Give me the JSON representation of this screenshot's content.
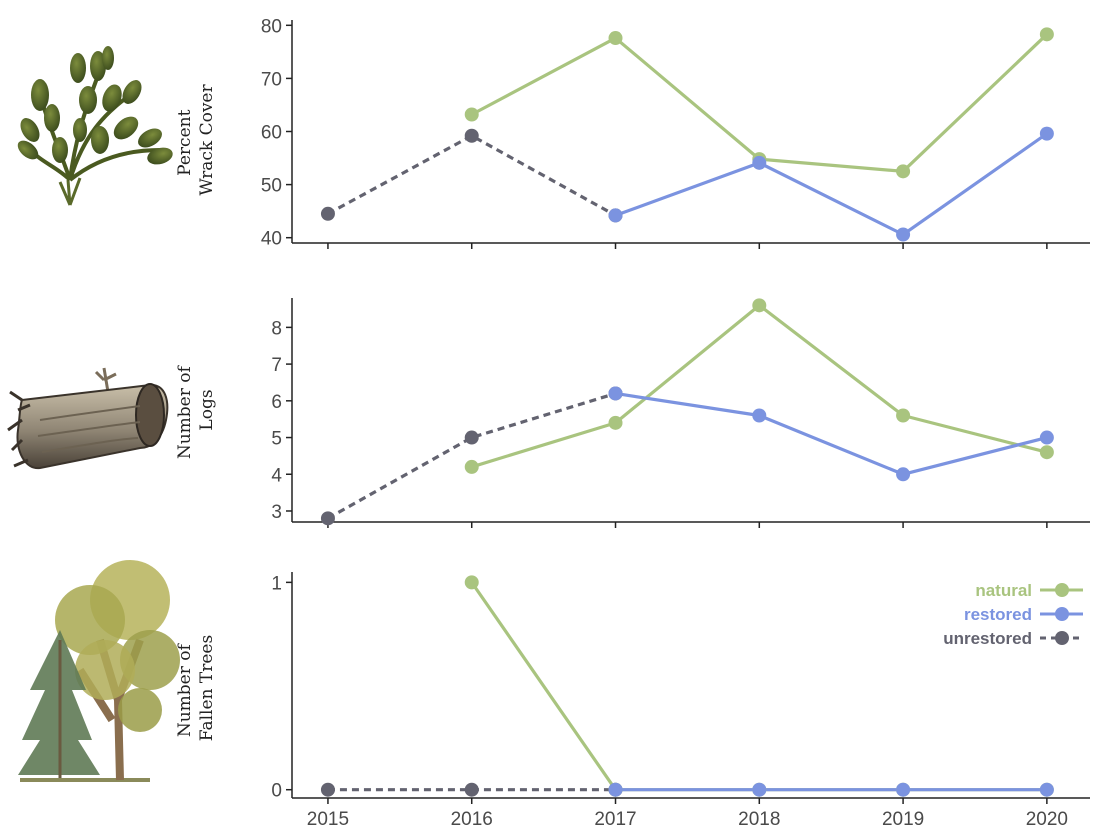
{
  "colors": {
    "natural": "#a9c47f",
    "restored": "#7b93e0",
    "unrestored": "#636370",
    "axis": "#222222"
  },
  "legend": {
    "natural": "natural",
    "restored": "restored",
    "unrestored": "unrestored"
  },
  "icons": [
    "seaweed-illustration",
    "log-illustration",
    "tree-illustration"
  ],
  "chart_data": [
    {
      "type": "line",
      "ylabel": [
        "Percent",
        "Wrack Cover"
      ],
      "x_ticks": [
        2015,
        2016,
        2017,
        2018,
        2019,
        2020
      ],
      "y_ticks": [
        40,
        50,
        60,
        70,
        80
      ],
      "ylim": [
        39,
        81
      ],
      "series": [
        {
          "name": "natural",
          "points": [
            [
              2016,
              63.2
            ],
            [
              2017,
              77.6
            ],
            [
              2018,
              54.8
            ],
            [
              2019,
              52.5
            ],
            [
              2020,
              78.3
            ]
          ]
        },
        {
          "name": "restored",
          "points": [
            [
              2017,
              44.2
            ],
            [
              2018,
              54.1
            ],
            [
              2019,
              40.6
            ],
            [
              2020,
              59.6
            ]
          ]
        },
        {
          "name": "unrestored",
          "points": [
            [
              2015,
              44.5
            ],
            [
              2016,
              59.2
            ],
            [
              2017,
              44.2
            ]
          ]
        }
      ]
    },
    {
      "type": "line",
      "ylabel": [
        "Number of",
        "Logs"
      ],
      "x_ticks": [
        2015,
        2016,
        2017,
        2018,
        2019,
        2020
      ],
      "y_ticks": [
        3,
        4,
        5,
        6,
        7,
        8
      ],
      "ylim": [
        2.7,
        8.8
      ],
      "series": [
        {
          "name": "natural",
          "points": [
            [
              2016,
              4.2
            ],
            [
              2017,
              5.4
            ],
            [
              2018,
              8.6
            ],
            [
              2019,
              5.6
            ],
            [
              2020,
              4.6
            ]
          ]
        },
        {
          "name": "restored",
          "points": [
            [
              2017,
              6.2
            ],
            [
              2018,
              5.6
            ],
            [
              2019,
              4.0
            ],
            [
              2020,
              5.0
            ]
          ]
        },
        {
          "name": "unrestored",
          "points": [
            [
              2015,
              2.8
            ],
            [
              2016,
              5.0
            ],
            [
              2017,
              6.2
            ]
          ]
        }
      ]
    },
    {
      "type": "line",
      "ylabel": [
        "Number of",
        "Fallen Trees"
      ],
      "x_ticks": [
        2015,
        2016,
        2017,
        2018,
        2019,
        2020
      ],
      "x_tick_labels": [
        "2015",
        "2016",
        "2017",
        "2018",
        "2019",
        "2020"
      ],
      "y_ticks": [
        0,
        1
      ],
      "ylim": [
        -0.04,
        1.05
      ],
      "series": [
        {
          "name": "natural",
          "points": [
            [
              2016,
              1
            ],
            [
              2017,
              0
            ],
            [
              2018,
              0
            ],
            [
              2019,
              0
            ],
            [
              2020,
              0
            ]
          ]
        },
        {
          "name": "restored",
          "points": [
            [
              2017,
              0
            ],
            [
              2018,
              0
            ],
            [
              2019,
              0
            ],
            [
              2020,
              0
            ]
          ]
        },
        {
          "name": "unrestored",
          "points": [
            [
              2015,
              0
            ],
            [
              2016,
              0
            ],
            [
              2017,
              0
            ]
          ]
        }
      ]
    }
  ]
}
